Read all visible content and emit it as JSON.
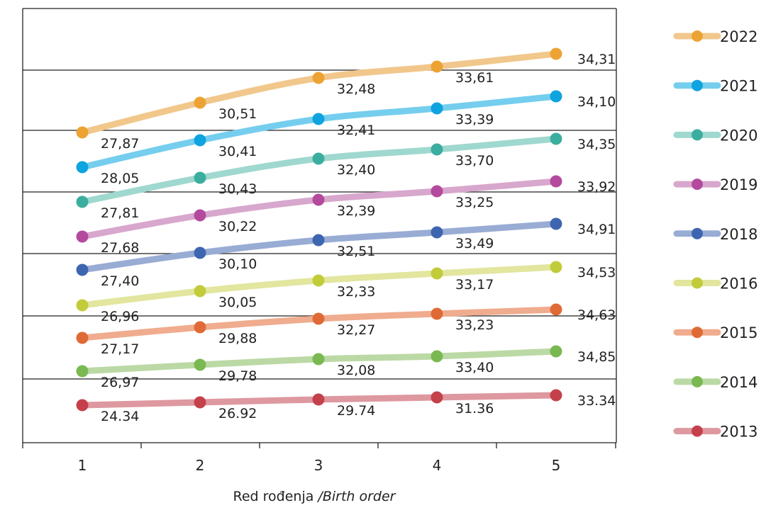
{
  "chart_data": {
    "type": "line",
    "xlabel": "Red rođenja",
    "xlabel_translation": "/Birth order",
    "categories": [
      "1",
      "2",
      "3",
      "4",
      "5"
    ],
    "grid": "horizontal",
    "legend_position": "right",
    "series": [
      {
        "name": "2022",
        "color": "#F1C78C",
        "marker": "#EDA333",
        "values": [
          27.87,
          30.51,
          32.48,
          33.61,
          34.31
        ],
        "labels": [
          "27,87",
          "30,51",
          "32,48",
          "33,61",
          "34,31"
        ]
      },
      {
        "name": "2021",
        "color": "#75CEEE",
        "marker": "#0FA3DF",
        "values": [
          28.05,
          30.41,
          32.41,
          33.39,
          34.1
        ],
        "labels": [
          "28,05",
          "30,41",
          "32,41",
          "33,39",
          "34,10"
        ]
      },
      {
        "name": "2020",
        "color": "#9FD8CE",
        "marker": "#3BAE9F",
        "values": [
          27.81,
          30.43,
          32.4,
          33.7,
          34.35
        ],
        "labels": [
          "27,81",
          "30,43",
          "32,40",
          "33,70",
          "34,35"
        ]
      },
      {
        "name": "2019",
        "color": "#D8A7CD",
        "marker": "#B44A9E",
        "values": [
          27.68,
          30.22,
          32.39,
          33.25,
          33.92
        ],
        "labels": [
          "27,68",
          "30,22",
          "32,39",
          "33,25",
          "33,92"
        ]
      },
      {
        "name": "2018",
        "color": "#98ACD4",
        "marker": "#3E66B0",
        "values": [
          27.4,
          30.1,
          32.51,
          33.49,
          34.91
        ],
        "labels": [
          "27,40",
          "30,10",
          "32,51",
          "33,49",
          "34,91"
        ]
      },
      {
        "name": "2016",
        "color": "#E2E69E",
        "marker": "#C2CC3A",
        "values": [
          26.96,
          30.05,
          32.33,
          33.17,
          34.53
        ],
        "labels": [
          "26,96",
          "30,05",
          "32,33",
          "33,17",
          "34,53"
        ]
      },
      {
        "name": "2015",
        "color": "#F0AC8E",
        "marker": "#E06A36",
        "values": [
          27.17,
          29.88,
          32.27,
          33.23,
          34.63
        ],
        "labels": [
          "27,17",
          "29,88",
          "32,27",
          "33,23",
          "34,63"
        ]
      },
      {
        "name": "2014",
        "color": "#BBD9A5",
        "marker": "#7AB851",
        "values": [
          26.97,
          29.78,
          32.08,
          33.4,
          34.85
        ],
        "labels": [
          "26,97",
          "29,78",
          "32,08",
          "33,40",
          "34,85"
        ]
      },
      {
        "name": "2013",
        "color": "#DE989F",
        "marker": "#C4414C",
        "values": [
          24.34,
          26.92,
          29.74,
          31.36,
          33.34
        ],
        "labels": [
          "24.34",
          "26.92",
          "29.74",
          "31.36",
          "33.34"
        ]
      }
    ]
  }
}
